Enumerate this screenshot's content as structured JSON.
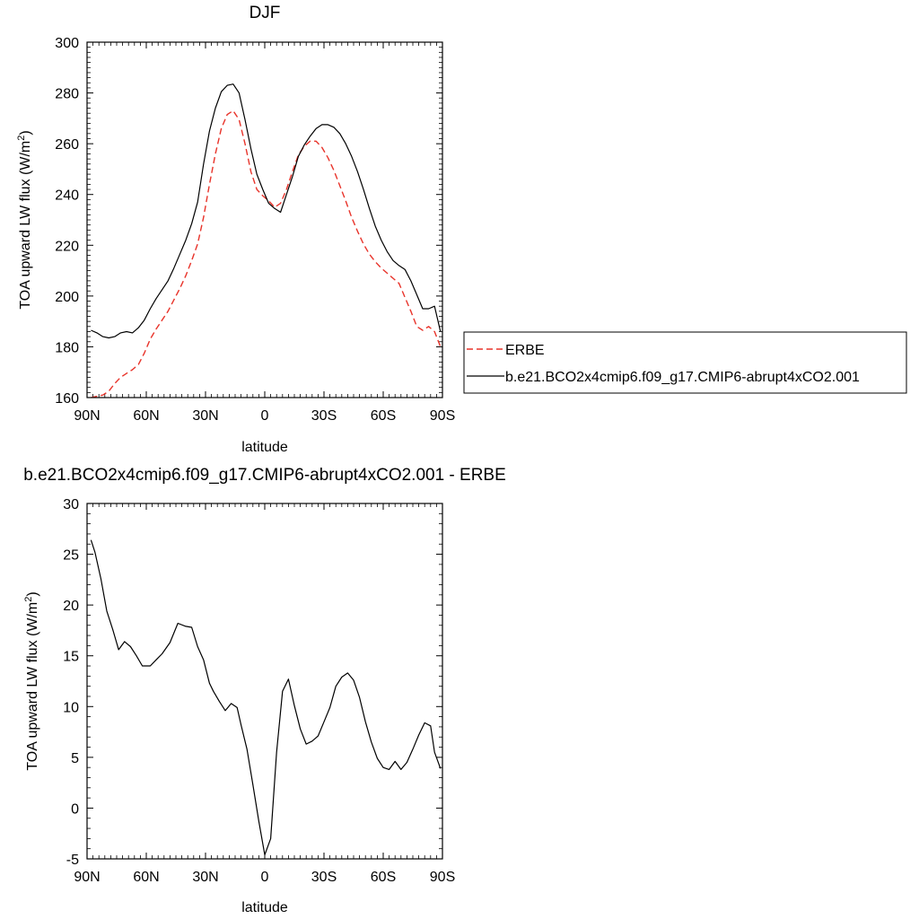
{
  "chart_data": [
    {
      "type": "line",
      "title": "DJF",
      "xlabel": "latitude",
      "ylabel": "TOA upward LW flux (W/m²)",
      "ylabel_main": "TOA upward LW flux (W/m",
      "ylabel_sup": "2",
      "ylabel_end": ")",
      "xlim": [
        -90,
        90
      ],
      "ylim": [
        160,
        300
      ],
      "x_ticks": [
        -90,
        -60,
        -30,
        0,
        30,
        60,
        90
      ],
      "x_tick_labels": [
        "90N",
        "60N",
        "30N",
        "0",
        "30S",
        "60S",
        "90S"
      ],
      "y_ticks": [
        160,
        180,
        200,
        220,
        240,
        260,
        280,
        300
      ],
      "y_tick_labels": [
        "160",
        "180",
        "200",
        "220",
        "240",
        "260",
        "280",
        "300"
      ],
      "grid": false,
      "legend_position": "right",
      "series": [
        {
          "name": "ERBE",
          "color": "#e8332a",
          "dash": "dashed",
          "x": [
            -88,
            -85,
            -82,
            -79,
            -76,
            -73,
            -70,
            -67,
            -64,
            -61,
            -58,
            -55,
            -52,
            -49,
            -46,
            -43,
            -40,
            -37,
            -34,
            -31,
            -28,
            -25,
            -22,
            -19,
            -16,
            -13,
            -10,
            -7,
            -4,
            -1,
            2,
            5,
            8,
            11,
            14,
            17,
            20,
            23,
            26,
            29,
            32,
            35,
            38,
            41,
            44,
            47,
            50,
            53,
            56,
            59,
            62,
            65,
            68,
            71,
            74,
            77,
            80,
            83,
            86,
            89
          ],
          "y": [
            160,
            160.5,
            161,
            162.5,
            165.5,
            168,
            169.5,
            171,
            173,
            177.5,
            183,
            187,
            190.5,
            194,
            198.5,
            203,
            208,
            214,
            220.5,
            231,
            244,
            256,
            266,
            271.5,
            273,
            269.5,
            260,
            249,
            242,
            239.5,
            237.5,
            235,
            236.5,
            242,
            249,
            255.5,
            259,
            261,
            261,
            258.5,
            254.5,
            249.5,
            243.5,
            237.5,
            231,
            225.5,
            220.5,
            216.5,
            213.5,
            211,
            209,
            207,
            205,
            199.5,
            194,
            188,
            186.5,
            188,
            186,
            180
          ]
        },
        {
          "name": "b.e21.BCO2x4cmip6.f09_g17.CMIP6-abrupt4xCO2.001",
          "color": "#000000",
          "dash": "solid",
          "x": [
            -88,
            -85,
            -82,
            -79,
            -76,
            -73,
            -70,
            -67,
            -64,
            -61,
            -58,
            -55,
            -52,
            -49,
            -46,
            -43,
            -40,
            -37,
            -34,
            -31,
            -28,
            -25,
            -22,
            -19,
            -16,
            -13,
            -10,
            -7,
            -4,
            -1,
            2,
            5,
            8,
            11,
            14,
            17,
            20,
            23,
            26,
            29,
            32,
            35,
            38,
            41,
            44,
            47,
            50,
            53,
            56,
            59,
            62,
            65,
            68,
            71,
            74,
            77,
            80,
            83,
            86,
            89
          ],
          "y": [
            186.5,
            185.5,
            184,
            183.5,
            184,
            185.5,
            186,
            185.5,
            187.5,
            190.5,
            195,
            199,
            202.5,
            206,
            211,
            216.5,
            222,
            228.5,
            237,
            252,
            265,
            274,
            280.5,
            283,
            283.5,
            280,
            269.5,
            258,
            248,
            242,
            236.5,
            234.5,
            233,
            240,
            247,
            255,
            259.5,
            263,
            266,
            267.5,
            267.5,
            266.5,
            264,
            260,
            255,
            249,
            242,
            234.5,
            227.5,
            222,
            217.5,
            214,
            212,
            210.5,
            206,
            200.5,
            195,
            195,
            196,
            186
          ]
        }
      ]
    },
    {
      "type": "line",
      "title": "b.e21.BCO2x4cmip6.f09_g17.CMIP6-abrupt4xCO2.001 - ERBE",
      "xlabel": "latitude",
      "ylabel": "TOA upward LW flux (W/m²)",
      "ylabel_main": "TOA upward LW flux (W/m",
      "ylabel_sup": "2",
      "ylabel_end": ")",
      "xlim": [
        -90,
        90
      ],
      "ylim": [
        -5,
        30
      ],
      "x_ticks": [
        -90,
        -60,
        -30,
        0,
        30,
        60,
        90
      ],
      "x_tick_labels": [
        "90N",
        "60N",
        "30N",
        "0",
        "30S",
        "60S",
        "90S"
      ],
      "y_ticks": [
        -5,
        0,
        5,
        10,
        15,
        20,
        25,
        30
      ],
      "y_tick_labels": [
        "-5",
        "0",
        "5",
        "10",
        "15",
        "20",
        "25",
        "30"
      ],
      "grid": false,
      "series": [
        {
          "color": "#000000",
          "x": [
            -88,
            -86,
            -83,
            -80,
            -77,
            -74,
            -71,
            -68,
            -65,
            -62,
            -58,
            -55,
            -52,
            -48,
            -44,
            -40,
            -37,
            -34,
            -31,
            -28,
            -26,
            -23,
            -20,
            -17,
            -14,
            -12,
            -9,
            -6,
            -3,
            0,
            3,
            6,
            9,
            12,
            15,
            18,
            21,
            24,
            27,
            30,
            33,
            36,
            39,
            42,
            45,
            48,
            51,
            54,
            57,
            60,
            63,
            66,
            69,
            72,
            75,
            78,
            81,
            84,
            86,
            89
          ],
          "y": [
            26.4,
            25.2,
            22.6,
            19.4,
            17.6,
            15.6,
            16.4,
            15.9,
            15,
            14,
            14,
            14.6,
            15.2,
            16.3,
            18.2,
            17.9,
            17.8,
            15.9,
            14.6,
            12.3,
            11.5,
            10.5,
            9.6,
            10.3,
            9.9,
            8.2,
            5.8,
            2.3,
            -1.3,
            -4.6,
            -3,
            5.5,
            11.5,
            12.7,
            10.1,
            7.8,
            6.3,
            6.6,
            7.1,
            8.5,
            9.9,
            12,
            12.9,
            13.3,
            12.6,
            10.9,
            8.5,
            6.5,
            4.9,
            4,
            3.8,
            4.6,
            3.8,
            4.5,
            5.8,
            7.2,
            8.4,
            8.1,
            5.5,
            3.9
          ]
        }
      ]
    }
  ]
}
